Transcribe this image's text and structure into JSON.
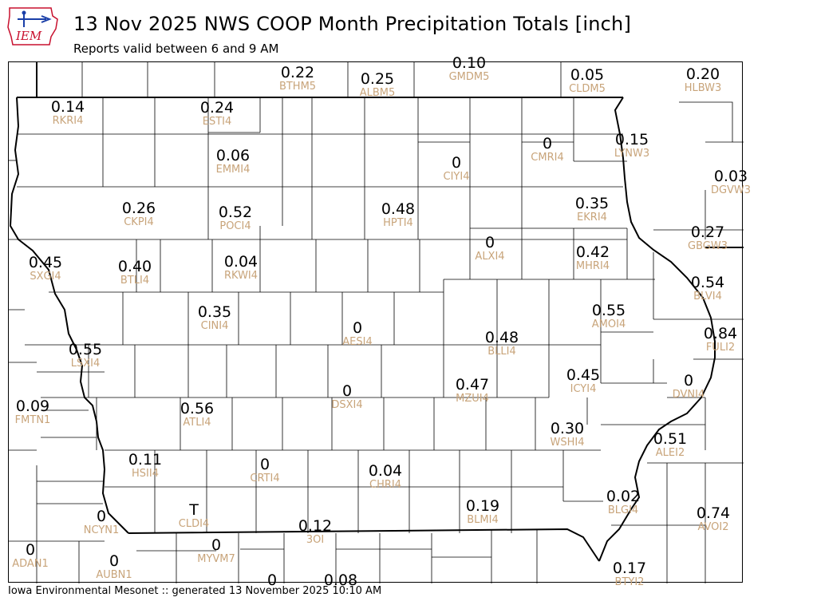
{
  "header": {
    "title": "13 Nov 2025 NWS COOP Month Precipitation Totals [inch]",
    "subtitle": "Reports valid between 6 and 9 AM",
    "logo_text": "IEM"
  },
  "footer": {
    "text": "Iowa Environmental Mesonet :: generated 13 November 2025 10:10 AM"
  },
  "colors": {
    "value_text": "#000000",
    "station_id_text": "#c8a47a",
    "county_lines": "#000000",
    "logo_red": "#c8102e",
    "logo_blue": "#1a3fa8"
  },
  "stations": [
    {
      "id": "BTHM5",
      "value": "0.22"
    },
    {
      "id": "ALBM5",
      "value": "0.25"
    },
    {
      "id": "GMDM5",
      "value": "0.10"
    },
    {
      "id": "CLDM5",
      "value": "0.05"
    },
    {
      "id": "HLBW3",
      "value": "0.20"
    },
    {
      "id": "RKRI4",
      "value": "0.14"
    },
    {
      "id": "ESTI4",
      "value": "0.24"
    },
    {
      "id": "EMMI4",
      "value": "0.06"
    },
    {
      "id": "CIYI4",
      "value": "0"
    },
    {
      "id": "CMRI4",
      "value": "0"
    },
    {
      "id": "LYNW3",
      "value": "0.15"
    },
    {
      "id": "DGVW3",
      "value": "0.03"
    },
    {
      "id": "CKPI4",
      "value": "0.26"
    },
    {
      "id": "POCI4",
      "value": "0.52"
    },
    {
      "id": "HPTI4",
      "value": "0.48"
    },
    {
      "id": "EKRI4",
      "value": "0.35"
    },
    {
      "id": "GBGW3",
      "value": "0.27"
    },
    {
      "id": "SXGI4",
      "value": "0.45"
    },
    {
      "id": "BTLI4",
      "value": "0.40"
    },
    {
      "id": "RKWI4",
      "value": "0.04"
    },
    {
      "id": "ALXI4",
      "value": "0"
    },
    {
      "id": "MHRI4",
      "value": "0.42"
    },
    {
      "id": "BLVI4",
      "value": "0.54"
    },
    {
      "id": "CINI4",
      "value": "0.35"
    },
    {
      "id": "AESI4",
      "value": "0"
    },
    {
      "id": "AMOI4",
      "value": "0.55"
    },
    {
      "id": "BLLI4",
      "value": "0.48"
    },
    {
      "id": "FULI2",
      "value": "0.84"
    },
    {
      "id": "LSXI4",
      "value": "0.55"
    },
    {
      "id": "ICYI4",
      "value": "0.45"
    },
    {
      "id": "DVNI4",
      "value": "0"
    },
    {
      "id": "MZUI4",
      "value": "0.47"
    },
    {
      "id": "DSXI4",
      "value": "0"
    },
    {
      "id": "FMTN1",
      "value": "0.09"
    },
    {
      "id": "ATLI4",
      "value": "0.56"
    },
    {
      "id": "WSHI4",
      "value": "0.30"
    },
    {
      "id": "ALEI2",
      "value": "0.51"
    },
    {
      "id": "HSII4",
      "value": "0.11"
    },
    {
      "id": "CRTI4",
      "value": "0"
    },
    {
      "id": "CHRI4",
      "value": "0.04"
    },
    {
      "id": "BLMI4",
      "value": "0.19"
    },
    {
      "id": "BLGI4",
      "value": "0.02"
    },
    {
      "id": "AVOI2",
      "value": "0.74"
    },
    {
      "id": "NCYN1",
      "value": "0"
    },
    {
      "id": "CLDI4",
      "value": "T"
    },
    {
      "id": "3OI",
      "value": "0.12"
    },
    {
      "id": "ADAN1",
      "value": "0"
    },
    {
      "id": "AUBN1",
      "value": "0"
    },
    {
      "id": "MYVM7",
      "value": "0"
    },
    {
      "id": "",
      "value": "0"
    },
    {
      "id": "",
      "value": "0.08"
    },
    {
      "id": "BTYI2",
      "value": "0.17"
    }
  ]
}
